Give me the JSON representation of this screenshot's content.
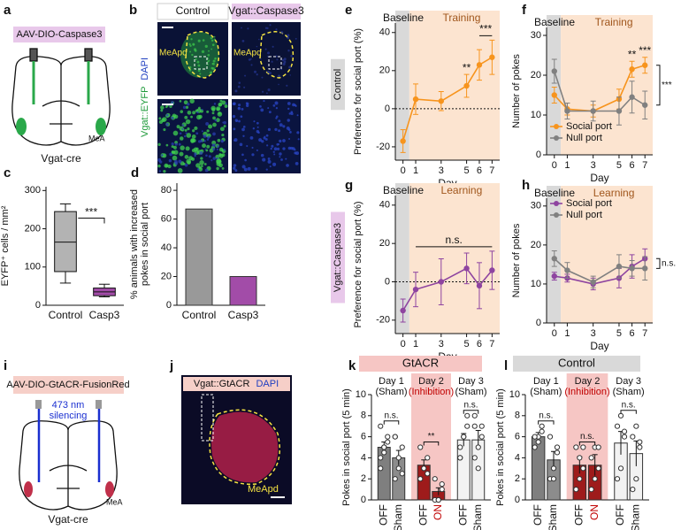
{
  "panel_labels": [
    "a",
    "b",
    "c",
    "d",
    "e",
    "f",
    "g",
    "h",
    "i",
    "j",
    "k",
    "l"
  ],
  "diagram_a": {
    "virus": "AAV-DIO-Caspase3",
    "region": "MeA",
    "mouse": "Vgat-cre"
  },
  "images_b": {
    "group_1": "Control",
    "group_2": "Vgat::Caspase3",
    "region": "MeApd",
    "stain_1": "Vgat::EYFP",
    "stain_2": "DAPI"
  },
  "diagram_i": {
    "virus": "AAV-DIO-GtACR-FusionRed",
    "light_1": "473 nm",
    "light_2": "silencing",
    "region": "MeA",
    "mouse": "Vgat-cre"
  },
  "image_j": {
    "stain_1": "Vgat::GtACR",
    "stain_2": "DAPI",
    "region": "MeApd"
  },
  "chart_data": [
    {
      "type": "box",
      "ylabel": "EYFP⁺ cells / mm²",
      "categories": [
        "Control",
        "Casp3"
      ],
      "colors": [
        "#b3b3b3",
        "#a24ca8"
      ],
      "boxes": [
        {
          "min": 58,
          "q1": 88,
          "median": 165,
          "q3": 245,
          "max": 265
        },
        {
          "min": 22,
          "q1": 25,
          "median": 35,
          "q3": 45,
          "max": 55
        }
      ],
      "ylim": [
        0,
        310
      ],
      "yticks": [
        0,
        100,
        200,
        300
      ],
      "significance": "***"
    },
    {
      "type": "bar",
      "ylabel": [
        "% animals with increased",
        "pokes in social port"
      ],
      "categories": [
        "Control",
        "Casp3"
      ],
      "values": [
        67,
        20
      ],
      "colors": [
        "#999999",
        "#a24ca8"
      ],
      "ylim": [
        0,
        85
      ],
      "yticks": [
        0,
        20,
        40,
        60,
        80
      ]
    },
    {
      "type": "line",
      "side_label": "Control",
      "side_color": "#d9d9d9",
      "ylabel": "Preference for social port (%)",
      "xlabel": "Day",
      "baseline_label": "Baseline",
      "phase_label": "Training",
      "x": [
        0,
        1,
        3,
        5,
        6,
        7
      ],
      "xlim": [
        -0.6,
        7.6
      ],
      "xticks": [
        0,
        1,
        3,
        5,
        6,
        7
      ],
      "ylim": [
        -27,
        45
      ],
      "yticks": [
        -20,
        0,
        20,
        40
      ],
      "zero_line": true,
      "series": [
        {
          "color": "#f7941d",
          "values": [
            -17,
            5,
            4,
            12,
            23,
            27
          ],
          "errors": [
            6,
            8,
            5,
            6,
            8,
            9
          ]
        }
      ],
      "annotations": [
        {
          "text": "**",
          "x": 5
        },
        {
          "text": "***",
          "x": [
            6,
            7
          ]
        }
      ]
    },
    {
      "type": "line",
      "ylabel": "Number of pokes",
      "xlabel": "Day",
      "baseline_label": "Baseline",
      "phase_label": "Training",
      "x": [
        0,
        1,
        3,
        5,
        6,
        7
      ],
      "xlim": [
        -0.6,
        7.6
      ],
      "xticks": [
        0,
        1,
        3,
        5,
        6,
        7
      ],
      "ylim": [
        0,
        32
      ],
      "yticks": [
        0,
        10,
        20,
        30
      ],
      "legend": "lower left",
      "series": [
        {
          "name": "Social port",
          "color": "#f7941d",
          "values": [
            15,
            11.5,
            11,
            14,
            21.5,
            22.5
          ],
          "errors": [
            2,
            1.5,
            1.5,
            2.5,
            2,
            2
          ]
        },
        {
          "name": "Null port",
          "color": "#808080",
          "values": [
            21,
            11,
            11,
            11,
            14.5,
            12.5
          ],
          "errors": [
            3,
            2,
            2.5,
            3.5,
            4,
            3.5
          ]
        }
      ],
      "annotations": [
        {
          "text": "**",
          "x": 6
        },
        {
          "text": "***",
          "x": 7
        },
        {
          "text": "***",
          "side": "right"
        }
      ]
    },
    {
      "type": "line",
      "side_label": "Vgat::Caspase3",
      "side_color": "#e8c8ea",
      "ylabel": "Preference for social port (%)",
      "xlabel": "Day",
      "baseline_label": "Baseline",
      "phase_label": "Learning",
      "x": [
        0,
        1,
        3,
        5,
        6,
        7
      ],
      "xlim": [
        -0.6,
        7.6
      ],
      "xticks": [
        0,
        1,
        3,
        5,
        6,
        7
      ],
      "ylim": [
        -27,
        45
      ],
      "yticks": [
        -20,
        0,
        20,
        40
      ],
      "zero_line": true,
      "series": [
        {
          "color": "#8e44a0",
          "values": [
            -15,
            -4,
            0,
            7,
            -2,
            6
          ],
          "errors": [
            6,
            9,
            12,
            8,
            12,
            10
          ]
        }
      ],
      "annotations": [
        {
          "text": "n.s.",
          "x": [
            1,
            7
          ]
        }
      ]
    },
    {
      "type": "line",
      "ylabel": "Number of pokes",
      "xlabel": "Day",
      "baseline_label": "Baseline",
      "phase_label": "Learning",
      "x": [
        0,
        1,
        3,
        5,
        6,
        7
      ],
      "xlim": [
        -0.6,
        7.6
      ],
      "xticks": [
        0,
        1,
        3,
        5,
        6,
        7
      ],
      "ylim": [
        0,
        32
      ],
      "yticks": [
        0,
        10,
        20,
        30
      ],
      "legend": "upper left",
      "series": [
        {
          "name": "Social port",
          "color": "#8e44a0",
          "values": [
            12,
            11.5,
            10,
            11.5,
            14.5,
            16.5
          ],
          "errors": [
            1,
            1,
            1.5,
            2.5,
            3,
            2.5
          ]
        },
        {
          "name": "Null port",
          "color": "#808080",
          "values": [
            16.5,
            13.5,
            10.5,
            14.5,
            14,
            14
          ],
          "errors": [
            2,
            2,
            1.5,
            3,
            2,
            3
          ]
        }
      ],
      "annotations": [
        {
          "text": "n.s.",
          "side": "right"
        }
      ]
    },
    {
      "type": "bar",
      "header": "GtACR",
      "header_color": "#f6c6c4",
      "ylabel": "Pokes in social port (5 min)",
      "groups": [
        {
          "name": "Day 1",
          "condition": "(Sham)"
        },
        {
          "name": "Day 2",
          "condition": "(Inhibition)",
          "condition_color": "#c00000",
          "shade": "#f6c6c4"
        },
        {
          "name": "Day 3",
          "condition": "(Sham)"
        }
      ],
      "categories": [
        "OFF",
        "Sham",
        "OFF",
        "ON",
        "OFF",
        "Sham"
      ],
      "label_colors": [
        "#111111",
        "#111111",
        "#111111",
        "#c00000",
        "#111111",
        "#111111"
      ],
      "values": [
        5,
        4,
        3.3,
        0.8,
        5.7,
        5.7
      ],
      "errors": [
        0.5,
        0.7,
        0.5,
        0.35,
        0.6,
        0.9
      ],
      "colors": [
        "#7f7f7f",
        "#8c8c8c",
        "#9e1b1b",
        "#9e1b1b",
        "#f2f2f2",
        "#f2f2f2"
      ],
      "points": [
        [
          4,
          5,
          6,
          7,
          4.5,
          5.5,
          3,
          5
        ],
        [
          2,
          3,
          5,
          6,
          4,
          2.5,
          6
        ],
        [
          2,
          3,
          4,
          5,
          3,
          2.5
        ],
        [
          0,
          0,
          1,
          2,
          0,
          1.5
        ],
        [
          5,
          6,
          7,
          4,
          6,
          8,
          4
        ],
        [
          4,
          5,
          7,
          8,
          3,
          6,
          7
        ]
      ],
      "significance": [
        "n.s.",
        "**",
        "n.s."
      ],
      "ylim": [
        0,
        10
      ],
      "yticks": [
        0,
        2,
        4,
        6,
        8,
        10
      ]
    },
    {
      "type": "bar",
      "header": "Control",
      "header_color": "#d9d9d9",
      "ylabel": "Pokes in social port (5 min)",
      "groups": [
        {
          "name": "Day 1",
          "condition": "(Sham)"
        },
        {
          "name": "Day 2",
          "condition": "(Inhibition)",
          "condition_color": "#c00000",
          "shade": "#f6c6c4"
        },
        {
          "name": "Day 3",
          "condition": "(Sham)"
        }
      ],
      "categories": [
        "OFF",
        "Sham",
        "OFF",
        "ON",
        "OFF",
        "Sham"
      ],
      "label_colors": [
        "#111111",
        "#111111",
        "#111111",
        "#c00000",
        "#111111",
        "#111111"
      ],
      "values": [
        6,
        3.8,
        3.3,
        3.3,
        5.4,
        4.4
      ],
      "errors": [
        0.4,
        0.8,
        0.8,
        1.0,
        1.1,
        1.2
      ],
      "colors": [
        "#7f7f7f",
        "#8c8c8c",
        "#9e1b1b",
        "#9e1b1b",
        "#f2f2f2",
        "#f2f2f2"
      ],
      "points": [
        [
          5,
          6,
          7,
          6,
          5.5,
          6.5
        ],
        [
          2,
          3,
          5,
          6,
          2,
          4.5
        ],
        [
          1,
          2,
          3,
          5,
          4,
          5
        ],
        [
          1,
          2,
          3,
          4,
          5,
          5
        ],
        [
          2,
          3,
          6,
          7,
          8,
          6.5
        ],
        [
          1,
          2,
          5,
          6,
          7,
          5.5
        ]
      ],
      "significance": [
        "n.s.",
        "n.s.",
        "n.s."
      ],
      "ylim": [
        0,
        10
      ],
      "yticks": [
        0,
        2,
        4,
        6,
        8,
        10
      ]
    }
  ]
}
